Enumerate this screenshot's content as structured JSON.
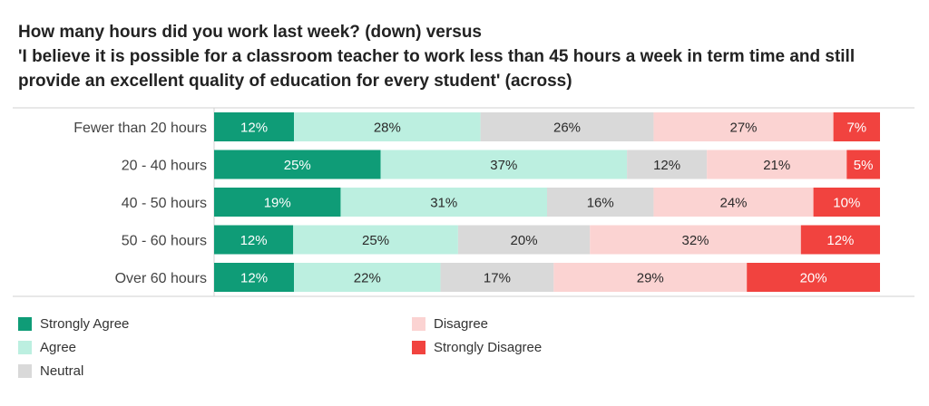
{
  "title_lines": [
    "How many hours did you work last week? (down) versus",
    "'I believe it is possible for a classroom teacher to work less than 45 hours a week in term time and still",
    "provide an excellent quality of education for every student' (across)"
  ],
  "colors": {
    "strongly_agree": "#0f9c77",
    "agree": "#bcefe0",
    "neutral": "#d9d9d9",
    "disagree": "#fbd3d2",
    "strongly_disagree": "#f1433f"
  },
  "chart_data": {
    "type": "bar",
    "orientation": "horizontal",
    "stacked": "percent",
    "categories": [
      "Fewer than 20 hours",
      "20 - 40 hours",
      "40 - 50 hours",
      "50 - 60 hours",
      "Over 60 hours"
    ],
    "series": [
      {
        "name": "Strongly Agree",
        "color_key": "strongly_agree",
        "values": [
          12,
          25,
          19,
          12,
          12
        ],
        "labels": [
          "12%",
          "25%",
          "19%",
          "12%",
          "12%"
        ]
      },
      {
        "name": "Agree",
        "color_key": "agree",
        "values": [
          28,
          37,
          31,
          25,
          22
        ],
        "labels": [
          "28%",
          "37%",
          "31%",
          "25%",
          "22%"
        ]
      },
      {
        "name": "Neutral",
        "color_key": "neutral",
        "values": [
          26,
          12,
          16,
          20,
          17
        ],
        "labels": [
          "26%",
          "12%",
          "16%",
          "20%",
          "17%"
        ]
      },
      {
        "name": "Disagree",
        "color_key": "disagree",
        "values": [
          27,
          21,
          24,
          32,
          29
        ],
        "labels": [
          "27%",
          "21%",
          "24%",
          "32%",
          "29%"
        ]
      },
      {
        "name": "Strongly Disagree",
        "color_key": "strongly_disagree",
        "values": [
          7,
          5,
          10,
          12,
          20
        ],
        "labels": [
          "7%",
          "5%",
          "10%",
          "12%",
          "20%"
        ]
      }
    ],
    "legend_placement": "bottom",
    "grid": false
  }
}
